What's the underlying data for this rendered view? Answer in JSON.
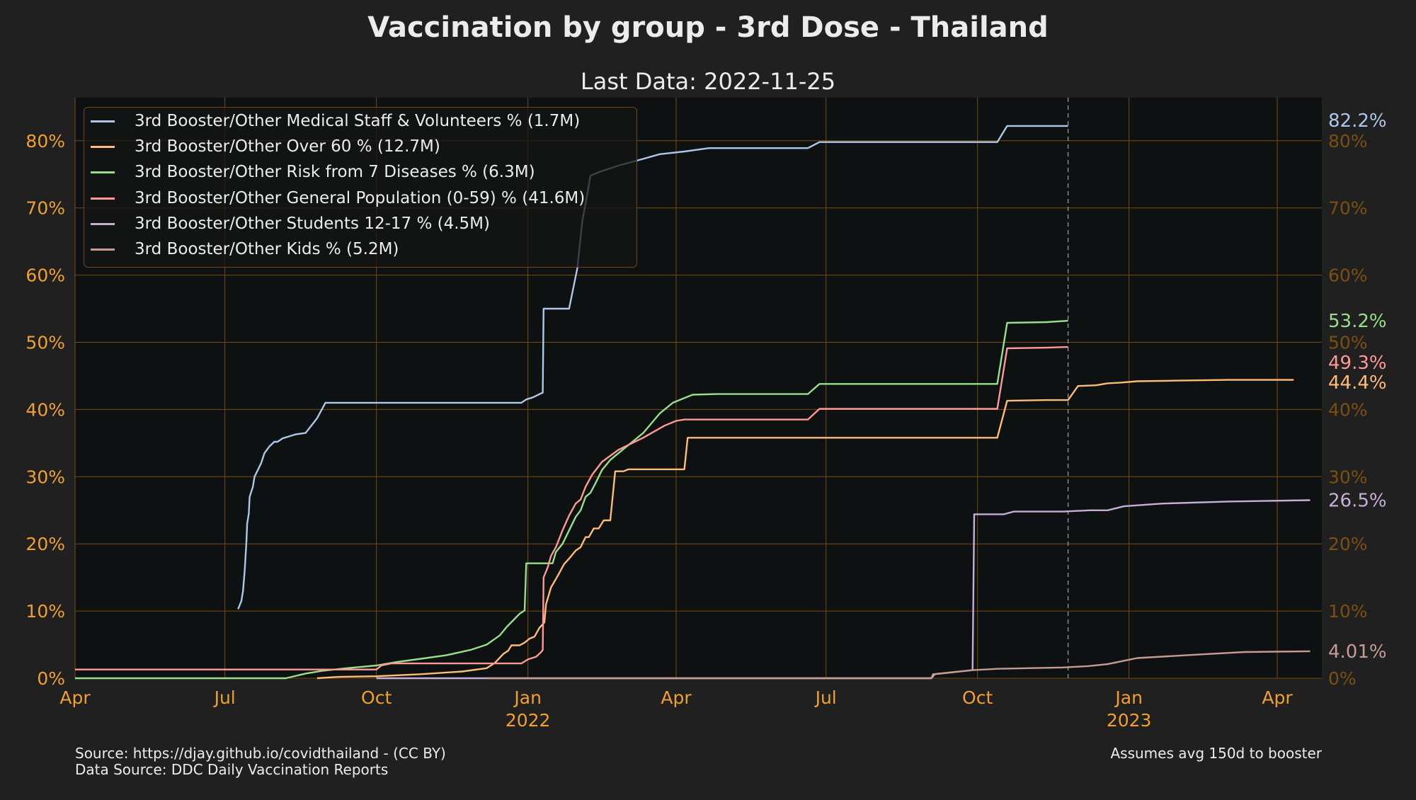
{
  "header": {
    "title": "Vaccination by group - 3rd Dose - Thailand",
    "subtitle": "Last Data: 2022-11-25"
  },
  "footer": {
    "source": "Source: https://djay.github.io/covidthailand - (CC BY)",
    "data_source": "Data Source: DDC Daily Vaccination Reports",
    "note": "Assumes avg 150d to booster"
  },
  "colors": {
    "background": "#202020",
    "plot_background": "#0d1112",
    "axis": "#f0a030",
    "right_axis": "#7a5010",
    "grid": "#7a4a10",
    "text": "#ececec"
  },
  "chart_data": {
    "type": "line",
    "title": "Vaccination by group - 3rd Dose - Thailand",
    "subtitle": "Last Data: 2022-11-25",
    "xlabel": "",
    "ylabel": "",
    "x_unit": "days since 2021-04-01",
    "xlim": [
      0,
      750
    ],
    "ylim": [
      0,
      86.4
    ],
    "grid": true,
    "legend_position": "top-left",
    "last_data_marker_day": 603,
    "x_ticks": [
      {
        "day": 0,
        "label": "Apr",
        "year": ""
      },
      {
        "day": 91,
        "label": "Jul",
        "year": ""
      },
      {
        "day": 183,
        "label": "Oct",
        "year": ""
      },
      {
        "day": 275,
        "label": "Jan",
        "year": "2022"
      },
      {
        "day": 365,
        "label": "Apr",
        "year": ""
      },
      {
        "day": 456,
        "label": "Jul",
        "year": ""
      },
      {
        "day": 548,
        "label": "Oct",
        "year": ""
      },
      {
        "day": 640,
        "label": "Jan",
        "year": "2023"
      },
      {
        "day": 730,
        "label": "Apr",
        "year": ""
      }
    ],
    "y_ticks": [
      0,
      10,
      20,
      30,
      40,
      50,
      60,
      70,
      80
    ],
    "y_tick_labels": [
      "0%",
      "10%",
      "20%",
      "30%",
      "40%",
      "50%",
      "60%",
      "70%",
      "80%"
    ],
    "series": [
      {
        "name": "3rd Booster/Other Medical Staff & Volunteers % (1.7M)",
        "color": "#aec7e8",
        "end_label": "82.2%",
        "end_value": 82.2,
        "points": [
          [
            99,
            10.3
          ],
          [
            101,
            11.5
          ],
          [
            102,
            13
          ],
          [
            103,
            16
          ],
          [
            104,
            20
          ],
          [
            104.5,
            23
          ],
          [
            105.5,
            24.5
          ],
          [
            106,
            27
          ],
          [
            108,
            28.5
          ],
          [
            109,
            30
          ],
          [
            111,
            31
          ],
          [
            113,
            32
          ],
          [
            115,
            33.5
          ],
          [
            118,
            34.5
          ],
          [
            121,
            35.2
          ],
          [
            123,
            35.2
          ],
          [
            126,
            35.7
          ],
          [
            130,
            36
          ],
          [
            134,
            36.3
          ],
          [
            140,
            36.5
          ],
          [
            147,
            38.7
          ],
          [
            152,
            41
          ],
          [
            161,
            41
          ],
          [
            200,
            41
          ],
          [
            240,
            41
          ],
          [
            271,
            41
          ],
          [
            274,
            41.5
          ],
          [
            278,
            41.8
          ],
          [
            283,
            42.4
          ],
          [
            284,
            42.5
          ],
          [
            284.5,
            55
          ],
          [
            300,
            55
          ],
          [
            305,
            61
          ],
          [
            308,
            68
          ],
          [
            311,
            72
          ],
          [
            313,
            74.8
          ],
          [
            320,
            75.5
          ],
          [
            330,
            76.3
          ],
          [
            345,
            77.3
          ],
          [
            355,
            78
          ],
          [
            370,
            78.4
          ],
          [
            385,
            78.9
          ],
          [
            410,
            78.9
          ],
          [
            445,
            78.9
          ],
          [
            452,
            79.8
          ],
          [
            470,
            79.8
          ],
          [
            510,
            79.8
          ],
          [
            545,
            79.8
          ],
          [
            560,
            79.8
          ],
          [
            566,
            82.2
          ],
          [
            590,
            82.2
          ],
          [
            603,
            82.2
          ]
        ]
      },
      {
        "name": "3rd Booster/Other Over 60 % (12.7M)",
        "color": "#ffbb78",
        "end_label": "44.4%",
        "end_value": 44.4,
        "points": [
          [
            147,
            0
          ],
          [
            160,
            0.2
          ],
          [
            183,
            0.3
          ],
          [
            210,
            0.6
          ],
          [
            235,
            1
          ],
          [
            250,
            1.5
          ],
          [
            255,
            2.3
          ],
          [
            260,
            3.6
          ],
          [
            263,
            4.1
          ],
          [
            265,
            4.9
          ],
          [
            270,
            4.9
          ],
          [
            273,
            5.3
          ],
          [
            276,
            5.9
          ],
          [
            279,
            6.2
          ],
          [
            282,
            7.5
          ],
          [
            285,
            8.3
          ],
          [
            286,
            11
          ],
          [
            289,
            13.5
          ],
          [
            293,
            15.2
          ],
          [
            297,
            17
          ],
          [
            300,
            17.8
          ],
          [
            304,
            19
          ],
          [
            307,
            19.5
          ],
          [
            310,
            21
          ],
          [
            312,
            21
          ],
          [
            315,
            22.3
          ],
          [
            318,
            22.3
          ],
          [
            321,
            23.5
          ],
          [
            325,
            23.5
          ],
          [
            328,
            30.8
          ],
          [
            333,
            30.8
          ],
          [
            336,
            31.1
          ],
          [
            345,
            31.1
          ],
          [
            360,
            31.1
          ],
          [
            370,
            31.1
          ],
          [
            372,
            35.8
          ],
          [
            390,
            35.8
          ],
          [
            420,
            35.8
          ],
          [
            460,
            35.8
          ],
          [
            500,
            35.8
          ],
          [
            540,
            35.8
          ],
          [
            560,
            35.8
          ],
          [
            566,
            41.3
          ],
          [
            590,
            41.4
          ],
          [
            603,
            41.4
          ],
          [
            609,
            43.5
          ],
          [
            620,
            43.6
          ],
          [
            627,
            43.9
          ],
          [
            635,
            44
          ],
          [
            645,
            44.2
          ],
          [
            670,
            44.3
          ],
          [
            700,
            44.4
          ],
          [
            740,
            44.4
          ]
        ]
      },
      {
        "name": "3rd Booster/Other Risk from 7 Diseases % (6.3M)",
        "color": "#98df8a",
        "end_label": "53.2%",
        "end_value": 53.2,
        "points": [
          [
            0,
            0
          ],
          [
            100,
            0
          ],
          [
            128,
            0
          ],
          [
            140,
            0.7
          ],
          [
            150,
            1.1
          ],
          [
            165,
            1.5
          ],
          [
            183,
            1.9
          ],
          [
            195,
            2.4
          ],
          [
            210,
            2.9
          ],
          [
            225,
            3.4
          ],
          [
            240,
            4.2
          ],
          [
            250,
            5
          ],
          [
            258,
            6.4
          ],
          [
            262,
            7.6
          ],
          [
            266,
            8.6
          ],
          [
            270,
            9.6
          ],
          [
            273,
            10.1
          ],
          [
            274,
            17.1
          ],
          [
            290,
            17.1
          ],
          [
            292,
            18.8
          ],
          [
            296,
            20
          ],
          [
            300,
            22
          ],
          [
            304,
            24
          ],
          [
            307,
            25
          ],
          [
            310,
            27
          ],
          [
            313,
            27.6
          ],
          [
            316,
            29
          ],
          [
            320,
            31
          ],
          [
            325,
            32.5
          ],
          [
            335,
            34.5
          ],
          [
            345,
            36.5
          ],
          [
            355,
            39.4
          ],
          [
            363,
            41
          ],
          [
            375,
            42.2
          ],
          [
            390,
            42.3
          ],
          [
            420,
            42.3
          ],
          [
            445,
            42.3
          ],
          [
            452,
            43.8
          ],
          [
            480,
            43.8
          ],
          [
            520,
            43.8
          ],
          [
            560,
            43.8
          ],
          [
            566,
            52.9
          ],
          [
            590,
            53
          ],
          [
            603,
            53.2
          ]
        ]
      },
      {
        "name": "3rd Booster/Other General Population (0-59) % (41.6M)",
        "color": "#ff9896",
        "end_label": "49.3%",
        "end_value": 49.3,
        "points": [
          [
            0,
            1.3
          ],
          [
            100,
            1.3
          ],
          [
            183,
            1.3
          ],
          [
            186,
            1.9
          ],
          [
            192,
            2.2
          ],
          [
            200,
            2.2
          ],
          [
            240,
            2.2
          ],
          [
            271,
            2.2
          ],
          [
            275,
            2.8
          ],
          [
            280,
            3.2
          ],
          [
            283,
            3.9
          ],
          [
            284,
            4.2
          ],
          [
            284.5,
            15
          ],
          [
            287,
            16.5
          ],
          [
            289,
            18.2
          ],
          [
            292,
            19.5
          ],
          [
            296,
            22
          ],
          [
            300,
            24.2
          ],
          [
            304,
            26
          ],
          [
            307,
            26.6
          ],
          [
            310,
            28.5
          ],
          [
            314,
            30.3
          ],
          [
            320,
            32.2
          ],
          [
            330,
            34
          ],
          [
            345,
            35.8
          ],
          [
            358,
            37.6
          ],
          [
            365,
            38.3
          ],
          [
            370,
            38.5
          ],
          [
            400,
            38.5
          ],
          [
            445,
            38.5
          ],
          [
            452,
            40.1
          ],
          [
            480,
            40.1
          ],
          [
            520,
            40.1
          ],
          [
            560,
            40.1
          ],
          [
            566,
            49.1
          ],
          [
            590,
            49.2
          ],
          [
            603,
            49.3
          ]
        ]
      },
      {
        "name": "3rd Booster/Other Students 12-17 % (4.5M)",
        "color": "#c5b0d5",
        "end_label": "26.5%",
        "end_value": 26.5,
        "points": [
          [
            183,
            0
          ],
          [
            300,
            0
          ],
          [
            400,
            0
          ],
          [
            520,
            0
          ],
          [
            522,
            0.6
          ],
          [
            545,
            1.2
          ],
          [
            546,
            24.4
          ],
          [
            564,
            24.4
          ],
          [
            570,
            24.8
          ],
          [
            600,
            24.8
          ],
          [
            616,
            25
          ],
          [
            627,
            25
          ],
          [
            637,
            25.6
          ],
          [
            660,
            26
          ],
          [
            700,
            26.3
          ],
          [
            750,
            26.5
          ]
        ]
      },
      {
        "name": "3rd Booster/Other Kids % (5.2M)",
        "color": "#c49c94",
        "end_label": "4.01%",
        "end_value": 4.01,
        "points": [
          [
            250,
            0
          ],
          [
            400,
            0
          ],
          [
            520,
            0
          ],
          [
            521,
            0.6
          ],
          [
            545,
            1.2
          ],
          [
            560,
            1.4
          ],
          [
            600,
            1.6
          ],
          [
            615,
            1.8
          ],
          [
            627,
            2.1
          ],
          [
            637,
            2.6
          ],
          [
            645,
            3
          ],
          [
            680,
            3.5
          ],
          [
            710,
            3.9
          ],
          [
            750,
            4.01
          ]
        ]
      }
    ]
  }
}
